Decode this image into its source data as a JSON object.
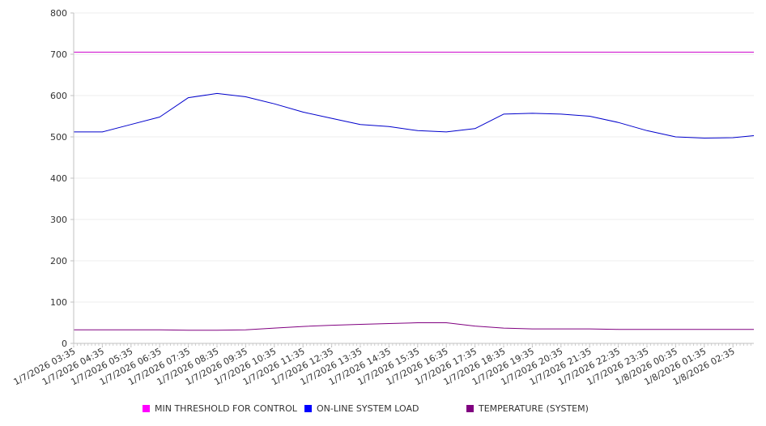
{
  "chart_data": {
    "type": "line",
    "title": "",
    "xlabel": "",
    "ylabel": "",
    "ylim": [
      0,
      800
    ],
    "yticks": [
      0,
      100,
      200,
      300,
      400,
      500,
      600,
      700,
      800
    ],
    "grid": true,
    "legend_position": "bottom",
    "xtick_labels": [
      "1/7/2026 03:35",
      "1/7/2026 04:35",
      "1/7/2026 05:35",
      "1/7/2026 06:35",
      "1/7/2026 07:35",
      "1/7/2026 08:35",
      "1/7/2026 09:35",
      "1/7/2026 10:35",
      "1/7/2026 11:35",
      "1/7/2026 12:35",
      "1/7/2026 13:35",
      "1/7/2026 14:35",
      "1/7/2026 15:35",
      "1/7/2026 16:35",
      "1/7/2026 17:35",
      "1/7/2026 18:35",
      "1/7/2026 19:35",
      "1/7/2026 20:35",
      "1/7/2026 21:35",
      "1/7/2026 22:35",
      "1/7/2026 23:35",
      "1/8/2026 00:35",
      "1/8/2026 01:35",
      "1/8/2026 02:35"
    ],
    "x": [
      "1/7/2026 03:35",
      "1/7/2026 04:35",
      "1/7/2026 05:35",
      "1/7/2026 06:35",
      "1/7/2026 07:35",
      "1/7/2026 08:35",
      "1/7/2026 09:35",
      "1/7/2026 10:35",
      "1/7/2026 11:35",
      "1/7/2026 12:35",
      "1/7/2026 13:35",
      "1/7/2026 14:35",
      "1/7/2026 15:35",
      "1/7/2026 16:35",
      "1/7/2026 17:35",
      "1/7/2026 18:35",
      "1/7/2026 19:35",
      "1/7/2026 20:35",
      "1/7/2026 21:35",
      "1/7/2026 22:35",
      "1/7/2026 23:35",
      "1/8/2026 00:35",
      "1/8/2026 01:35",
      "1/8/2026 02:35",
      "1/8/2026 03:30"
    ],
    "series": [
      {
        "name": "MIN THRESHOLD FOR CONTROL",
        "color": "#cc00cc",
        "values": [
          705,
          705,
          705,
          705,
          705,
          705,
          705,
          705,
          705,
          705,
          705,
          705,
          705,
          705,
          705,
          705,
          705,
          705,
          705,
          705,
          705,
          705,
          705,
          705,
          705
        ]
      },
      {
        "name": "ON-LINE SYSTEM LOAD",
        "color": "#0000cc",
        "values": [
          512,
          512,
          530,
          548,
          595,
          605,
          597,
          580,
          560,
          545,
          530,
          525,
          515,
          512,
          520,
          555,
          557,
          555,
          550,
          535,
          515,
          500,
          497,
          498,
          503
        ]
      },
      {
        "name": "TEMPERATURE (SYSTEM)",
        "color": "#800080",
        "values": [
          33,
          33,
          33,
          33,
          32,
          32,
          33,
          37,
          41,
          44,
          46,
          48,
          50,
          50,
          42,
          37,
          35,
          35,
          35,
          34,
          34,
          34,
          34,
          34,
          34
        ]
      }
    ]
  },
  "legend": {
    "items": [
      {
        "label": "MIN THRESHOLD FOR CONTROL",
        "color": "#ff00ff"
      },
      {
        "label": "ON-LINE SYSTEM LOAD",
        "color": "#0000ff"
      },
      {
        "label": "TEMPERATURE (SYSTEM)",
        "color": "#800080"
      }
    ]
  }
}
